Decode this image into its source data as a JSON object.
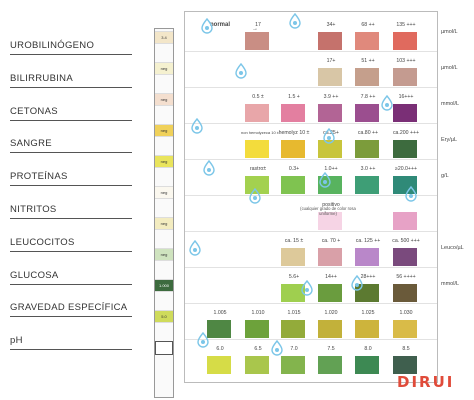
{
  "analytes": [
    "UROBILINÓGENO",
    "BILIRRUBINA",
    "CETONAS",
    "SANGRE",
    "PROTEÍNAS",
    "NITRITOS",
    "LEUCOCITOS",
    "GLUCOSA",
    "GRAVEDAD ESPECÍFICA",
    "pH"
  ],
  "strip": [
    {
      "label": "3.4",
      "color": "#f3e6c9"
    },
    {
      "label": "neg",
      "color": "#f5f1d0"
    },
    {
      "label": "neg",
      "color": "#f4dfcf"
    },
    {
      "label": "neg",
      "color": "#f0d15a"
    },
    {
      "label": "neg",
      "color": "#e9e45c"
    },
    {
      "label": "neg",
      "color": "#fbf8ef"
    },
    {
      "label": "neg",
      "color": "#f3ecc0"
    },
    {
      "label": "neg",
      "color": "#cfe3bf"
    },
    {
      "label": "1.000",
      "color": "#3d6b3e"
    },
    {
      "label": "5.0",
      "color": "#cfdb5b"
    },
    {
      "label": "",
      "color": "#ffffff"
    }
  ],
  "rows": [
    {
      "name": "urobilinogen",
      "unit": "µmol/L",
      "swatches": [
        {
          "label": "normal",
          "color": "#ffffff",
          "bold": true
        },
        {
          "label": "17",
          "color": "#c98e84"
        },
        {
          "label": "",
          "color": "#ffffff"
        },
        {
          "label": "34+",
          "color": "#c5726c"
        },
        {
          "label": "68 ++",
          "color": "#e0897c"
        },
        {
          "label": "135 +++",
          "color": "#e06a5e"
        }
      ]
    },
    {
      "name": "bilirubin",
      "unit": "µmol/L",
      "swatches": [
        {
          "label": "",
          "color": "#ffffff"
        },
        {
          "label": "",
          "color": "#ffffff"
        },
        {
          "label": "",
          "color": "#ffffff"
        },
        {
          "label": "17+",
          "color": "#d8c6a6"
        },
        {
          "label": "51 ++",
          "color": "#c59f8c"
        },
        {
          "label": "103 +++",
          "color": "#c49b90"
        }
      ]
    },
    {
      "name": "ketones",
      "unit": "mmol/L",
      "swatches": [
        {
          "label": "",
          "color": "#ffffff"
        },
        {
          "label": "0.5 ±",
          "color": "#e8a6a9"
        },
        {
          "label": "1.5 +",
          "color": "#e37fa0"
        },
        {
          "label": "3.9 ++",
          "color": "#b26495"
        },
        {
          "label": "7.8 ++",
          "color": "#9b4e8f"
        },
        {
          "label": "16+++",
          "color": "#7a2f76"
        }
      ]
    },
    {
      "name": "blood",
      "unit": "Ery/µL",
      "swatches": [
        {
          "label": "non hemolyzeca 10 ±",
          "color": "#f3dc3c"
        },
        {
          "label": "hemolyz 10 ±",
          "color": "#e7b92f"
        },
        {
          "label": "ca.25+",
          "color": "#c8c53c"
        },
        {
          "label": "ca.80 ++",
          "color": "#7c9c3b"
        },
        {
          "label": "ca.200 +++",
          "color": "#3d6b3e"
        }
      ]
    },
    {
      "name": "protein",
      "unit": "g/L",
      "swatches": [
        {
          "label": "rastro±",
          "color": "#a3d14f"
        },
        {
          "label": "0.3+",
          "color": "#7fc350"
        },
        {
          "label": "1.0++",
          "color": "#58b35f"
        },
        {
          "label": "3.0 ++",
          "color": "#3e9e76"
        },
        {
          "label": "≥20.0+++",
          "color": "#2f8a78"
        }
      ]
    },
    {
      "name": "nitrite",
      "unit": "",
      "swatches": [
        {
          "label": "positivo",
          "color": "#f6d4e5"
        },
        {
          "label": "",
          "color": "#e7a2c6"
        }
      ],
      "note": "(cualquier grado de color rosa uniforme)"
    },
    {
      "name": "leukocytes",
      "unit": "Leuco/µL",
      "swatches": [
        {
          "label": "ca. 15 ±",
          "color": "#ddc99a"
        },
        {
          "label": "ca. 70 +",
          "color": "#d9a0a8"
        },
        {
          "label": "ca. 125 ++",
          "color": "#b987c9"
        },
        {
          "label": "ca. 500 +++",
          "color": "#7a4a7d"
        }
      ]
    },
    {
      "name": "glucose",
      "unit": "mmol/L",
      "swatches": [
        {
          "label": "5.6+",
          "color": "#9fcf4f"
        },
        {
          "label": "14++",
          "color": "#6a9c3e"
        },
        {
          "label": "28+++",
          "color": "#5c7a31"
        },
        {
          "label": "56 ++++",
          "color": "#6a5a3a"
        }
      ]
    },
    {
      "name": "specific-gravity",
      "unit": "",
      "swatches": [
        {
          "label": "1.005",
          "color": "#4f8744"
        },
        {
          "label": "1.010",
          "color": "#6da23b"
        },
        {
          "label": "1.015",
          "color": "#93ab3a"
        },
        {
          "label": "1.020",
          "color": "#c2b13a"
        },
        {
          "label": "1.025",
          "color": "#cdb43c"
        },
        {
          "label": "1.030",
          "color": "#d9bb48"
        }
      ]
    },
    {
      "name": "ph",
      "unit": "",
      "swatches": [
        {
          "label": "6.0",
          "color": "#d6dc47"
        },
        {
          "label": "6.5",
          "color": "#a9c64c"
        },
        {
          "label": "7.0",
          "color": "#83b44d"
        },
        {
          "label": "7.5",
          "color": "#62a154"
        },
        {
          "label": "8.0",
          "color": "#3d8953"
        },
        {
          "label": "8.5",
          "color": "#3f5f4e"
        }
      ]
    }
  ],
  "brand": {
    "name": "DIRUI",
    "color": "#e04b3a"
  }
}
